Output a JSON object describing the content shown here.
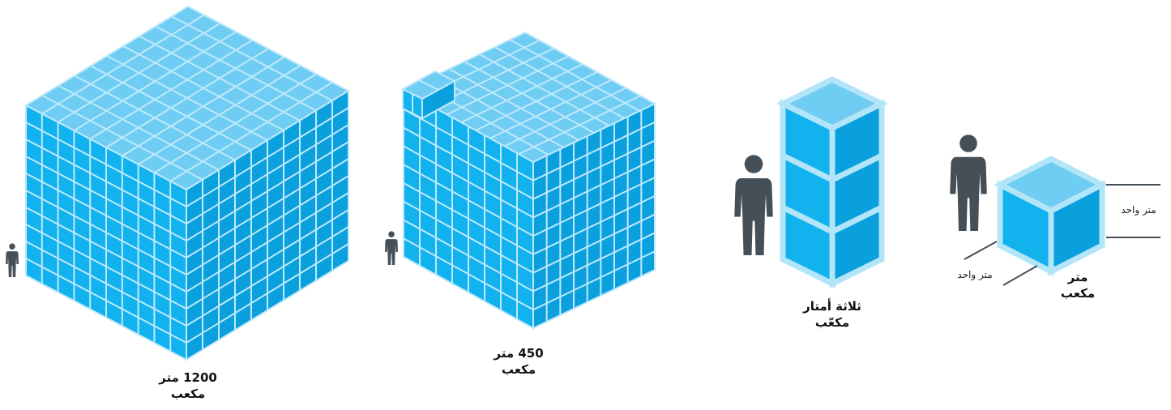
{
  "figures": [
    {
      "label": [
        "1200 متر",
        "مكعب"
      ]
    },
    {
      "label": [
        "450 متر",
        "مكعب"
      ]
    },
    {
      "label": [
        "ثلاثة أمتار",
        "مكعّب"
      ]
    },
    {
      "label": [
        "متر",
        "مكعب"
      ],
      "dimensions": [
        "متر واحد",
        "متر واحد"
      ]
    }
  ]
}
